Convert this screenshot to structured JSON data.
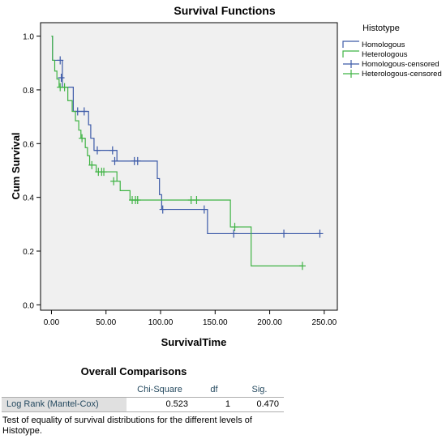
{
  "chart_data": {
    "type": "line",
    "title": "Survival Functions",
    "xlabel": "SurvivalTime",
    "ylabel": "Cum Survival",
    "xlim": [
      -10,
      262
    ],
    "ylim": [
      -0.02,
      1.05
    ],
    "xticks": [
      0,
      50,
      100,
      150,
      200,
      250
    ],
    "xtick_labels": [
      "0.00",
      "50.00",
      "100.00",
      "150.00",
      "200.00",
      "250.00"
    ],
    "yticks": [
      0.0,
      0.2,
      0.4,
      0.6,
      0.8,
      1.0
    ],
    "ytick_labels": [
      "0.0",
      "0.2",
      "0.4",
      "0.6",
      "0.8",
      "1.0"
    ],
    "legend": {
      "title": "Histotype",
      "position": "right",
      "entries": [
        "Homologous",
        "Heterologous",
        "Homologous-censored",
        "Heterologous-censored"
      ]
    },
    "series": [
      {
        "name": "Homologous",
        "color": "#3c5aa8",
        "steps": [
          [
            0,
            1.0
          ],
          [
            1,
            0.91
          ],
          [
            10,
            0.81
          ],
          [
            20,
            0.72
          ],
          [
            34,
            0.67
          ],
          [
            36,
            0.62
          ],
          [
            39,
            0.575
          ],
          [
            60,
            0.535
          ],
          [
            97,
            0.47
          ],
          [
            99,
            0.41
          ],
          [
            101,
            0.355
          ],
          [
            143,
            0.265
          ],
          [
            246,
            0.265
          ]
        ],
        "censored": [
          [
            8,
            0.91
          ],
          [
            9,
            0.845
          ],
          [
            24,
            0.72
          ],
          [
            30,
            0.72
          ],
          [
            42,
            0.575
          ],
          [
            56,
            0.575
          ],
          [
            58,
            0.535
          ],
          [
            76,
            0.535
          ],
          [
            79,
            0.535
          ],
          [
            102,
            0.355
          ],
          [
            140,
            0.355
          ],
          [
            167,
            0.265
          ],
          [
            213,
            0.265
          ],
          [
            246,
            0.265
          ]
        ]
      },
      {
        "name": "Heterologous",
        "color": "#3fb344",
        "steps": [
          [
            0,
            1.0
          ],
          [
            1,
            0.91
          ],
          [
            3,
            0.87
          ],
          [
            5,
            0.84
          ],
          [
            7,
            0.81
          ],
          [
            15,
            0.76
          ],
          [
            19,
            0.72
          ],
          [
            22,
            0.685
          ],
          [
            25,
            0.65
          ],
          [
            27,
            0.62
          ],
          [
            31,
            0.585
          ],
          [
            33,
            0.555
          ],
          [
            35,
            0.52
          ],
          [
            41,
            0.495
          ],
          [
            60,
            0.46
          ],
          [
            63,
            0.425
          ],
          [
            72,
            0.39
          ],
          [
            164,
            0.29
          ],
          [
            183,
            0.145
          ],
          [
            230,
            0.145
          ]
        ],
        "censored": [
          [
            8,
            0.81
          ],
          [
            12,
            0.81
          ],
          [
            28,
            0.62
          ],
          [
            37,
            0.52
          ],
          [
            43,
            0.495
          ],
          [
            46,
            0.495
          ],
          [
            48,
            0.495
          ],
          [
            57,
            0.46
          ],
          [
            74,
            0.39
          ],
          [
            77,
            0.39
          ],
          [
            79,
            0.39
          ],
          [
            128,
            0.39
          ],
          [
            133,
            0.39
          ],
          [
            168,
            0.29
          ],
          [
            230,
            0.145
          ]
        ]
      }
    ]
  },
  "comparison": {
    "title": "Overall Comparisons",
    "headers": [
      "Chi-Square",
      "df",
      "Sig."
    ],
    "row_label": "Log Rank (Mantel-Cox)",
    "chi_square": "0.523",
    "df": "1",
    "sig": "0.470",
    "footnote": "Test of equality of survival distributions for the different levels of Histotype."
  }
}
